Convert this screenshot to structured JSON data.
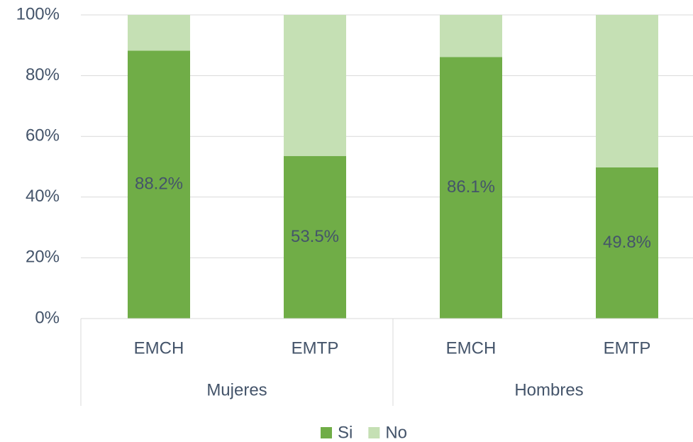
{
  "chart_data": {
    "type": "stacked_bar",
    "categories": [
      "EMCH",
      "EMTP",
      "EMCH",
      "EMTP"
    ],
    "groups": [
      "Mujeres",
      "Hombres"
    ],
    "series": [
      {
        "name": "Si",
        "color": "#70ad47",
        "values": [
          88.2,
          53.5,
          86.1,
          49.8
        ],
        "value_labels": [
          "88.2%",
          "53.5%",
          "86.1%",
          "49.8%"
        ]
      },
      {
        "name": "No",
        "color": "#c5e0b4",
        "values": [
          11.8,
          46.5,
          13.9,
          50.2
        ]
      }
    ],
    "ylim": [
      0,
      100
    ],
    "yticks": [
      {
        "value": 0,
        "label": "0%"
      },
      {
        "value": 20,
        "label": "20%"
      },
      {
        "value": 40,
        "label": "40%"
      },
      {
        "value": 60,
        "label": "60%"
      },
      {
        "value": 80,
        "label": "80%"
      },
      {
        "value": 100,
        "label": "100%"
      }
    ],
    "grid": true,
    "legend": "bottom"
  }
}
